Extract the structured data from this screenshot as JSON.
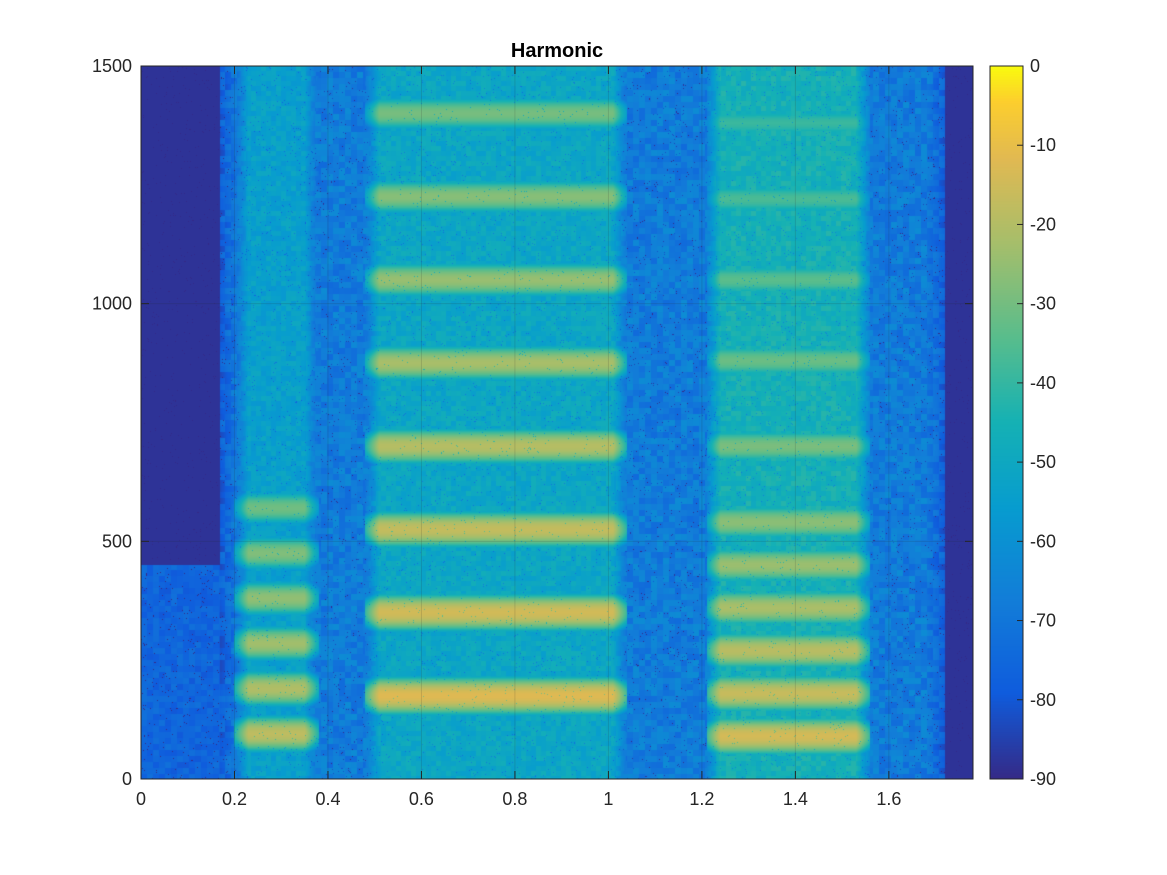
{
  "chart_data": {
    "type": "heatmap",
    "title": "Harmonic",
    "xlabel": "",
    "ylabel": "",
    "xlim": [
      0,
      1.78
    ],
    "ylim": [
      0,
      1500
    ],
    "x_ticks": [
      "0",
      "0.2",
      "0.4",
      "0.6",
      "0.8",
      "1",
      "1.2",
      "1.4",
      "1.6"
    ],
    "y_ticks": [
      "0",
      "500",
      "1000",
      "1500"
    ],
    "grid": true,
    "colormap": "parula",
    "colorbar": {
      "range": [
        -90,
        0
      ],
      "ticks": [
        "0",
        "-10",
        "-20",
        "-30",
        "-40",
        "-50",
        "-60",
        "-70",
        "-80",
        "-90"
      ]
    },
    "background_level_db": -88,
    "voiced_segments": [
      {
        "t_start": 0.2,
        "t_end": 0.38,
        "f0": 95,
        "floor_db": -58,
        "peak_db": -18,
        "harmonics": [
          95,
          190,
          285,
          380,
          475,
          570
        ]
      },
      {
        "t_start": 0.48,
        "t_end": 1.04,
        "f0": 175,
        "floor_db": -55,
        "peak_db": -12,
        "harmonics": [
          175,
          350,
          525,
          700,
          875,
          1050,
          1225,
          1400
        ]
      },
      {
        "t_start": 1.21,
        "t_end": 1.56,
        "f0": 90,
        "floor_db": -50,
        "peak_db": -14,
        "harmonics": [
          90,
          180,
          270,
          360,
          450,
          540,
          700,
          880,
          1050,
          1220,
          1380
        ]
      }
    ]
  }
}
